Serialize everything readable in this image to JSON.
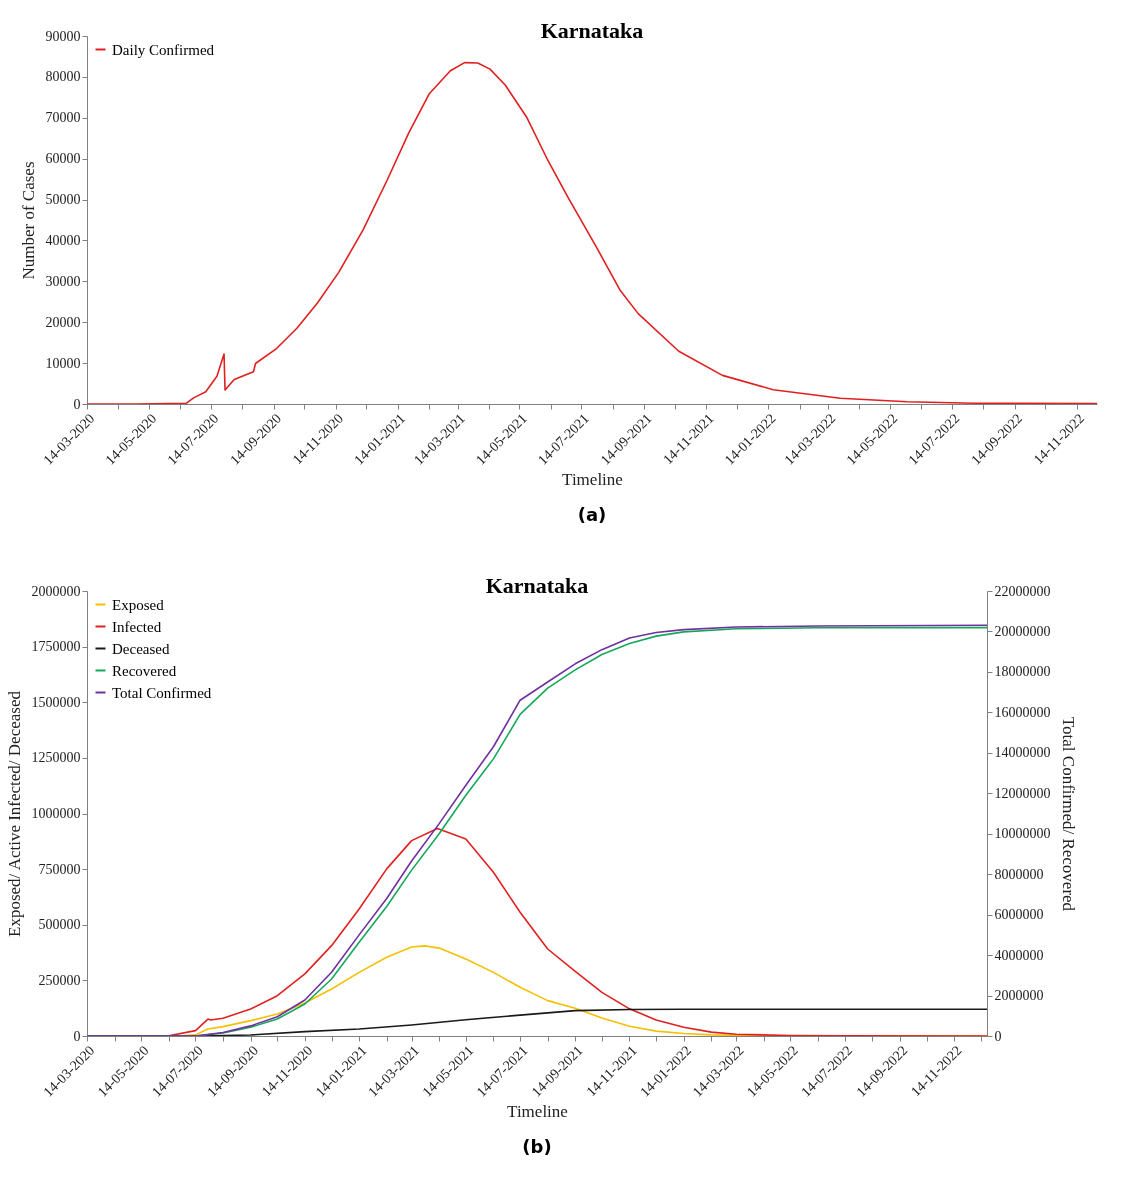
{
  "chart_data": [
    {
      "type": "line",
      "title": "Karnataka",
      "xlabel": "Timeline",
      "ylabel": "Number of Cases",
      "legend": "top left",
      "annotations": [
        "(a)"
      ],
      "xlim": [
        "2020-03-14",
        "2022-12-04"
      ],
      "ylim": [
        0,
        90000
      ],
      "yticks": [
        0,
        10000,
        20000,
        30000,
        40000,
        50000,
        60000,
        70000,
        80000,
        90000
      ],
      "xticks": [
        {
          "value": "2020-03-14",
          "label": "14-03-2020"
        },
        {
          "value": "2020-04-14",
          "label": null
        },
        {
          "value": "2020-05-14",
          "label": "14-05-2020"
        },
        {
          "value": "2020-06-14",
          "label": null
        },
        {
          "value": "2020-07-14",
          "label": "14-07-2020"
        },
        {
          "value": "2020-08-14",
          "label": null
        },
        {
          "value": "2020-09-14",
          "label": "14-09-2020"
        },
        {
          "value": "2020-10-14",
          "label": null
        },
        {
          "value": "2020-11-14",
          "label": "14-11-2020"
        },
        {
          "value": "2020-12-14",
          "label": null
        },
        {
          "value": "2021-01-14",
          "label": "14-01-2021"
        },
        {
          "value": "2021-02-14",
          "label": null
        },
        {
          "value": "2021-03-14",
          "label": "14-03-2021"
        },
        {
          "value": "2021-04-14",
          "label": null
        },
        {
          "value": "2021-05-14",
          "label": "14-05-2021"
        },
        {
          "value": "2021-06-14",
          "label": null
        },
        {
          "value": "2021-07-14",
          "label": "14-07-2021"
        },
        {
          "value": "2021-08-14",
          "label": null
        },
        {
          "value": "2021-09-14",
          "label": "14-09-2021"
        },
        {
          "value": "2021-10-14",
          "label": null
        },
        {
          "value": "2021-11-14",
          "label": "14-11-2021"
        },
        {
          "value": "2021-12-14",
          "label": null
        },
        {
          "value": "2022-01-14",
          "label": "14-01-2022"
        },
        {
          "value": "2022-02-14",
          "label": null
        },
        {
          "value": "2022-03-14",
          "label": "14-03-2022"
        },
        {
          "value": "2022-04-14",
          "label": null
        },
        {
          "value": "2022-05-14",
          "label": "14-05-2022"
        },
        {
          "value": "2022-06-14",
          "label": null
        },
        {
          "value": "2022-07-14",
          "label": "14-07-2022"
        },
        {
          "value": "2022-08-14",
          "label": null
        },
        {
          "value": "2022-09-14",
          "label": "14-09-2022"
        },
        {
          "value": "2022-10-14",
          "label": null
        },
        {
          "value": "2022-11-14",
          "label": "14-11-2022"
        }
      ],
      "series": [
        {
          "name": "Daily Confirmed",
          "color": "#e02020",
          "x": [
            "2020-03-14",
            "2020-05-01",
            "2020-06-20",
            "2020-06-27",
            "2020-07-09",
            "2020-07-20",
            "2020-07-27",
            "2020-07-28",
            "2020-08-06",
            "2020-08-25",
            "2020-08-27",
            "2020-09-16",
            "2020-10-07",
            "2020-10-27",
            "2020-11-17",
            "2020-12-11",
            "2021-01-04",
            "2021-01-25",
            "2021-02-14",
            "2021-03-07",
            "2021-03-21",
            "2021-04-03",
            "2021-04-15",
            "2021-04-30",
            "2021-05-21",
            "2021-06-10",
            "2021-07-01",
            "2021-07-29",
            "2021-08-21",
            "2021-09-08",
            "2021-10-18",
            "2021-11-30",
            "2022-01-19",
            "2022-03-26",
            "2022-05-31",
            "2022-08-05",
            "2022-12-04"
          ],
          "values": [
            0,
            0,
            200,
            1500,
            3000,
            6800,
            12200,
            3400,
            6000,
            7900,
            9900,
            13400,
            18600,
            24700,
            32200,
            42600,
            54900,
            66300,
            75800,
            81500,
            83500,
            83400,
            81900,
            78000,
            70200,
            60100,
            50500,
            38300,
            27900,
            22100,
            12900,
            7000,
            3500,
            1400,
            560,
            200,
            100
          ]
        }
      ]
    },
    {
      "type": "line",
      "title": "Karnataka",
      "xlabel": "Timeline",
      "ylabel": "Exposed/ Active Infected/ Deceased",
      "y2label": "Total Confirmed/ Recovered",
      "legend": "top left",
      "annotations": [
        "(b)"
      ],
      "xlim": [
        "2020-03-14",
        "2022-12-21"
      ],
      "ylim": [
        0,
        2000000
      ],
      "yticks": [
        0,
        250000,
        500000,
        750000,
        1000000,
        1250000,
        1500000,
        1750000,
        2000000
      ],
      "y2lim": [
        0,
        22000000
      ],
      "y2ticks": [
        0,
        2000000,
        4000000,
        6000000,
        8000000,
        10000000,
        12000000,
        14000000,
        16000000,
        18000000,
        20000000,
        22000000
      ],
      "xticks": [
        {
          "value": "2020-03-14",
          "label": "14-03-2020"
        },
        {
          "value": "2020-04-14",
          "label": null
        },
        {
          "value": "2020-05-14",
          "label": "14-05-2020"
        },
        {
          "value": "2020-06-14",
          "label": null
        },
        {
          "value": "2020-07-14",
          "label": "14-07-2020"
        },
        {
          "value": "2020-08-14",
          "label": null
        },
        {
          "value": "2020-09-14",
          "label": "14-09-2020"
        },
        {
          "value": "2020-10-14",
          "label": null
        },
        {
          "value": "2020-11-14",
          "label": "14-11-2020"
        },
        {
          "value": "2020-12-14",
          "label": null
        },
        {
          "value": "2021-01-14",
          "label": "14-01-2021"
        },
        {
          "value": "2021-02-14",
          "label": null
        },
        {
          "value": "2021-03-14",
          "label": "14-03-2021"
        },
        {
          "value": "2021-04-14",
          "label": null
        },
        {
          "value": "2021-05-14",
          "label": "14-05-2021"
        },
        {
          "value": "2021-06-14",
          "label": null
        },
        {
          "value": "2021-07-14",
          "label": "14-07-2021"
        },
        {
          "value": "2021-08-14",
          "label": null
        },
        {
          "value": "2021-09-14",
          "label": "14-09-2021"
        },
        {
          "value": "2021-10-14",
          "label": null
        },
        {
          "value": "2021-11-14",
          "label": "14-11-2021"
        },
        {
          "value": "2021-12-14",
          "label": null
        },
        {
          "value": "2022-01-14",
          "label": "14-01-2022"
        },
        {
          "value": "2022-02-14",
          "label": null
        },
        {
          "value": "2022-03-14",
          "label": "14-03-2022"
        },
        {
          "value": "2022-04-14",
          "label": null
        },
        {
          "value": "2022-05-14",
          "label": "14-05-2022"
        },
        {
          "value": "2022-06-14",
          "label": null
        },
        {
          "value": "2022-07-14",
          "label": "14-07-2022"
        },
        {
          "value": "2022-08-14",
          "label": null
        },
        {
          "value": "2022-09-14",
          "label": "14-09-2022"
        },
        {
          "value": "2022-10-14",
          "label": null
        },
        {
          "value": "2022-11-14",
          "label": "14-11-2022"
        },
        {
          "value": "2022-12-14",
          "label": null
        }
      ],
      "series": [
        {
          "name": "Exposed",
          "color": "#f5c000",
          "x": [
            "2020-03-14",
            "2020-06-14",
            "2020-07-01",
            "2020-07-14",
            "2020-07-28",
            "2020-08-14",
            "2020-09-14",
            "2020-10-14",
            "2020-11-14",
            "2020-12-14",
            "2021-01-14",
            "2021-02-14",
            "2021-03-14",
            "2021-03-29",
            "2021-04-14",
            "2021-05-14",
            "2021-06-14",
            "2021-07-14",
            "2021-08-14",
            "2021-09-14",
            "2021-10-14",
            "2021-11-14",
            "2021-12-14",
            "2022-01-14",
            "2022-02-14",
            "2022-04-14",
            "2022-12-21"
          ],
          "values": [
            0,
            0,
            2000,
            5000,
            31500,
            42000,
            69000,
            99000,
            148000,
            211000,
            286000,
            354000,
            400000,
            405000,
            395000,
            346000,
            286000,
            219000,
            159000,
            125000,
            81000,
            44000,
            22000,
            11000,
            5000,
            1000,
            0
          ]
        },
        {
          "name": "Infected",
          "color": "#e02020",
          "x": [
            "2020-03-14",
            "2020-05-14",
            "2020-06-14",
            "2020-07-14",
            "2020-07-28",
            "2020-07-31",
            "2020-08-14",
            "2020-09-14",
            "2020-10-14",
            "2020-11-14",
            "2020-12-14",
            "2021-01-14",
            "2021-02-14",
            "2021-03-14",
            "2021-04-12",
            "2021-05-14",
            "2021-06-14",
            "2021-07-14",
            "2021-08-14",
            "2021-09-14",
            "2021-10-14",
            "2021-11-14",
            "2021-12-14",
            "2022-01-14",
            "2022-02-14",
            "2022-03-14",
            "2022-05-14",
            "2022-07-14",
            "2022-12-21"
          ],
          "values": [
            0,
            0,
            1000,
            24000,
            76000,
            72000,
            80000,
            121000,
            181000,
            279000,
            406000,
            571000,
            751000,
            878000,
            933000,
            885000,
            736000,
            556000,
            391000,
            290000,
            196000,
            122000,
            72000,
            39000,
            17500,
            8000,
            2000,
            500,
            200
          ]
        },
        {
          "name": "Deceased",
          "color": "#1a1a1a",
          "x": [
            "2020-03-14",
            "2020-07-14",
            "2020-09-14",
            "2020-11-14",
            "2021-01-14",
            "2021-03-14",
            "2021-05-14",
            "2021-07-14",
            "2021-09-14",
            "2021-11-14",
            "2022-01-14",
            "2022-12-21"
          ],
          "values": [
            0,
            0,
            4500,
            19500,
            31500,
            49500,
            73000,
            94000,
            114000,
            119000,
            120000,
            120000
          ]
        },
        {
          "name": "Recovered",
          "color": "#16a85a",
          "axis": "y2",
          "x": [
            "2020-03-14",
            "2020-07-14",
            "2020-08-14",
            "2020-09-14",
            "2020-10-14",
            "2020-11-14",
            "2020-12-14",
            "2021-01-14",
            "2021-02-14",
            "2021-03-14",
            "2021-04-14",
            "2021-05-14",
            "2021-06-14",
            "2021-07-14",
            "2021-08-14",
            "2021-09-14",
            "2021-10-14",
            "2021-11-14",
            "2021-12-14",
            "2022-01-14",
            "2022-03-14",
            "2022-06-14",
            "2022-12-21"
          ],
          "values": [
            0,
            0,
            150000,
            430000,
            840000,
            1580000,
            2820000,
            4630000,
            6400000,
            8200000,
            10000000,
            11900000,
            13700000,
            15900000,
            17200000,
            18100000,
            18860000,
            19400000,
            19770000,
            19980000,
            20130000,
            20180000,
            20190000
          ]
        },
        {
          "name": "Total Confirmed",
          "color": "#7030a0",
          "axis": "y2",
          "x": [
            "2020-03-14",
            "2020-07-14",
            "2020-08-14",
            "2020-09-14",
            "2020-10-14",
            "2020-11-14",
            "2020-12-14",
            "2021-01-14",
            "2021-02-14",
            "2021-03-14",
            "2021-04-14",
            "2021-05-14",
            "2021-06-14",
            "2021-07-14",
            "2021-08-14",
            "2021-09-14",
            "2021-10-14",
            "2021-11-14",
            "2021-12-14",
            "2022-01-14",
            "2022-03-14",
            "2022-06-14",
            "2022-12-21"
          ],
          "values": [
            0,
            0,
            170000,
            500000,
            950000,
            1780000,
            3150000,
            5000000,
            6800000,
            8650000,
            10500000,
            12400000,
            14300000,
            16600000,
            17500000,
            18400000,
            19100000,
            19680000,
            19950000,
            20090000,
            20220000,
            20270000,
            20310000
          ]
        }
      ]
    }
  ]
}
